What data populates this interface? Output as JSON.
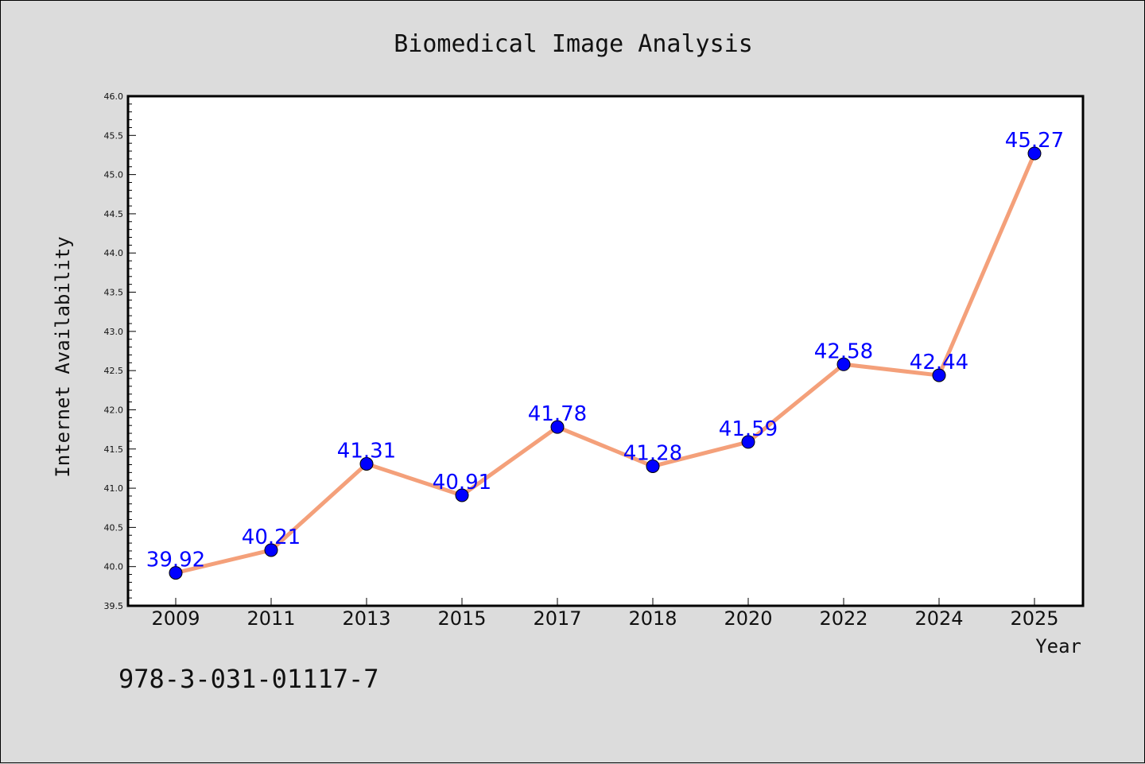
{
  "chart_data": {
    "type": "line",
    "title": "Biomedical Image Analysis",
    "xlabel": "Year",
    "ylabel": "Internet Availability",
    "categories": [
      "2009",
      "2011",
      "2013",
      "2015",
      "2017",
      "2018",
      "2020",
      "2022",
      "2024",
      "2025"
    ],
    "series": [
      {
        "values": [
          39.92,
          40.21,
          41.31,
          40.91,
          41.78,
          41.28,
          41.59,
          42.58,
          42.44,
          45.27
        ]
      }
    ],
    "data_labels": [
      "39.92",
      "40.21",
      "41.31",
      "40.91",
      "41.78",
      "41.28",
      "41.59",
      "42.58",
      "42.44",
      "45.27"
    ],
    "ylim": [
      39.5,
      46.0
    ],
    "yticks": [
      "39.5",
      "40.0",
      "40.5",
      "41.0",
      "41.5",
      "42.0",
      "42.5",
      "43.0",
      "43.5",
      "44.0",
      "44.5",
      "45.0",
      "45.5",
      "46.0"
    ],
    "grid": false,
    "legend": "none"
  },
  "footer_text": "978-3-031-01117-7",
  "colors": {
    "background": "#dcdcdc",
    "plot_area": "#ffffff",
    "line": "#f4a07a",
    "marker": "#0000ff",
    "data_label": "#0000ff",
    "text": "#111111"
  }
}
